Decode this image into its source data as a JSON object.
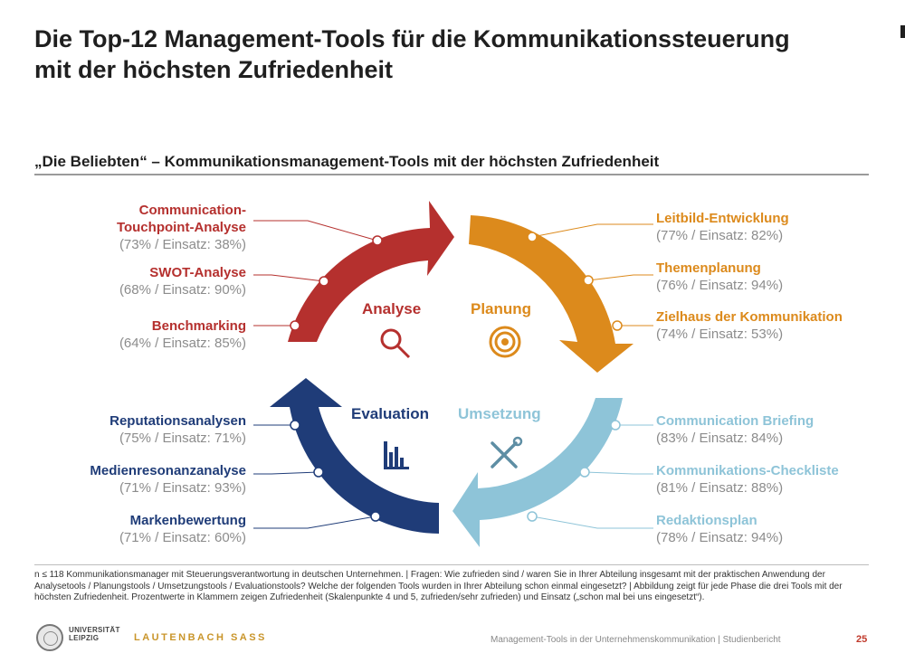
{
  "title": {
    "line1": "Die Top-12 Management-Tools für die Kommunikationssteuerung",
    "line2": "mit der höchsten Zufriedenheit"
  },
  "subtitle": "„Die Beliebten“ – Kommunikationsmanagement-Tools mit der höchsten Zufriedenheit",
  "colors": {
    "analyse": "#b5302e",
    "planung": "#dc8a1c",
    "umsetzung": "#8ec4d8",
    "evaluation": "#1f3c78"
  },
  "phases": {
    "analyse": {
      "label": "Analyse",
      "icon": "magnifier-icon"
    },
    "planung": {
      "label": "Planung",
      "icon": "target-icon"
    },
    "umsetzung": {
      "label": "Umsetzung",
      "icon": "tools-icon"
    },
    "evaluation": {
      "label": "Evaluation",
      "icon": "bar-chart-icon"
    }
  },
  "tools": {
    "analyse": [
      {
        "name": "Communication-",
        "name2": "Touchpoint-Analyse",
        "stat": "(73% / Einsatz: 38%)"
      },
      {
        "name": "SWOT-Analyse",
        "stat": "(68% / Einsatz: 90%)"
      },
      {
        "name": "Benchmarking",
        "stat": "(64% / Einsatz: 85%)"
      }
    ],
    "planung": [
      {
        "name": "Leitbild-Entwicklung",
        "stat": "(77% / Einsatz: 82%)"
      },
      {
        "name": "Themenplanung",
        "stat": "(76% / Einsatz: 94%)"
      },
      {
        "name": "Zielhaus der Kommunikation",
        "stat": "(74% / Einsatz: 53%)"
      }
    ],
    "evaluation": [
      {
        "name": "Reputationsanalysen",
        "stat": "(75% / Einsatz: 71%)"
      },
      {
        "name": "Medienresonanzanalyse",
        "stat": "(71% / Einsatz: 93%)"
      },
      {
        "name": "Markenbewertung",
        "stat": "(71% / Einsatz: 60%)"
      }
    ],
    "umsetzung": [
      {
        "name": "Communication Briefing",
        "stat": "(83% / Einsatz: 84%)"
      },
      {
        "name": "Kommunikations-Checkliste",
        "stat": "(81% / Einsatz: 88%)"
      },
      {
        "name": "Redaktionsplan",
        "stat": "(78% / Einsatz: 94%)"
      }
    ]
  },
  "footnote": "n ≤ 118 Kommunikationsmanager mit Steuerungsverantwortung in deutschen Unternehmen. | Fragen: Wie zufrieden sind / waren Sie in Ihrer Abteilung insgesamt mit der praktischen Anwendung der Analysetools / Planungstools / Umsetzungstools / Evaluationstools? Welche der folgenden Tools wurden in Ihrer Abteilung schon einmal eingesetzt? | Abbildung zeigt für jede Phase die drei Tools mit der höchsten Zufriedenheit. Prozentwerte in Klammern zeigen Zufriedenheit (Skalenpunkte 4 und 5, zufrieden/sehr zufrieden) und Einsatz („schon mal bei uns eingesetzt“).",
  "footer": {
    "university_line1": "UNIVERSITÄT",
    "university_line2": "LEIPZIG",
    "brand": "LAUTENBACH SASS",
    "report": "Management-Tools in der Unternehmenskommunikation | Studienbericht",
    "page": "25"
  }
}
